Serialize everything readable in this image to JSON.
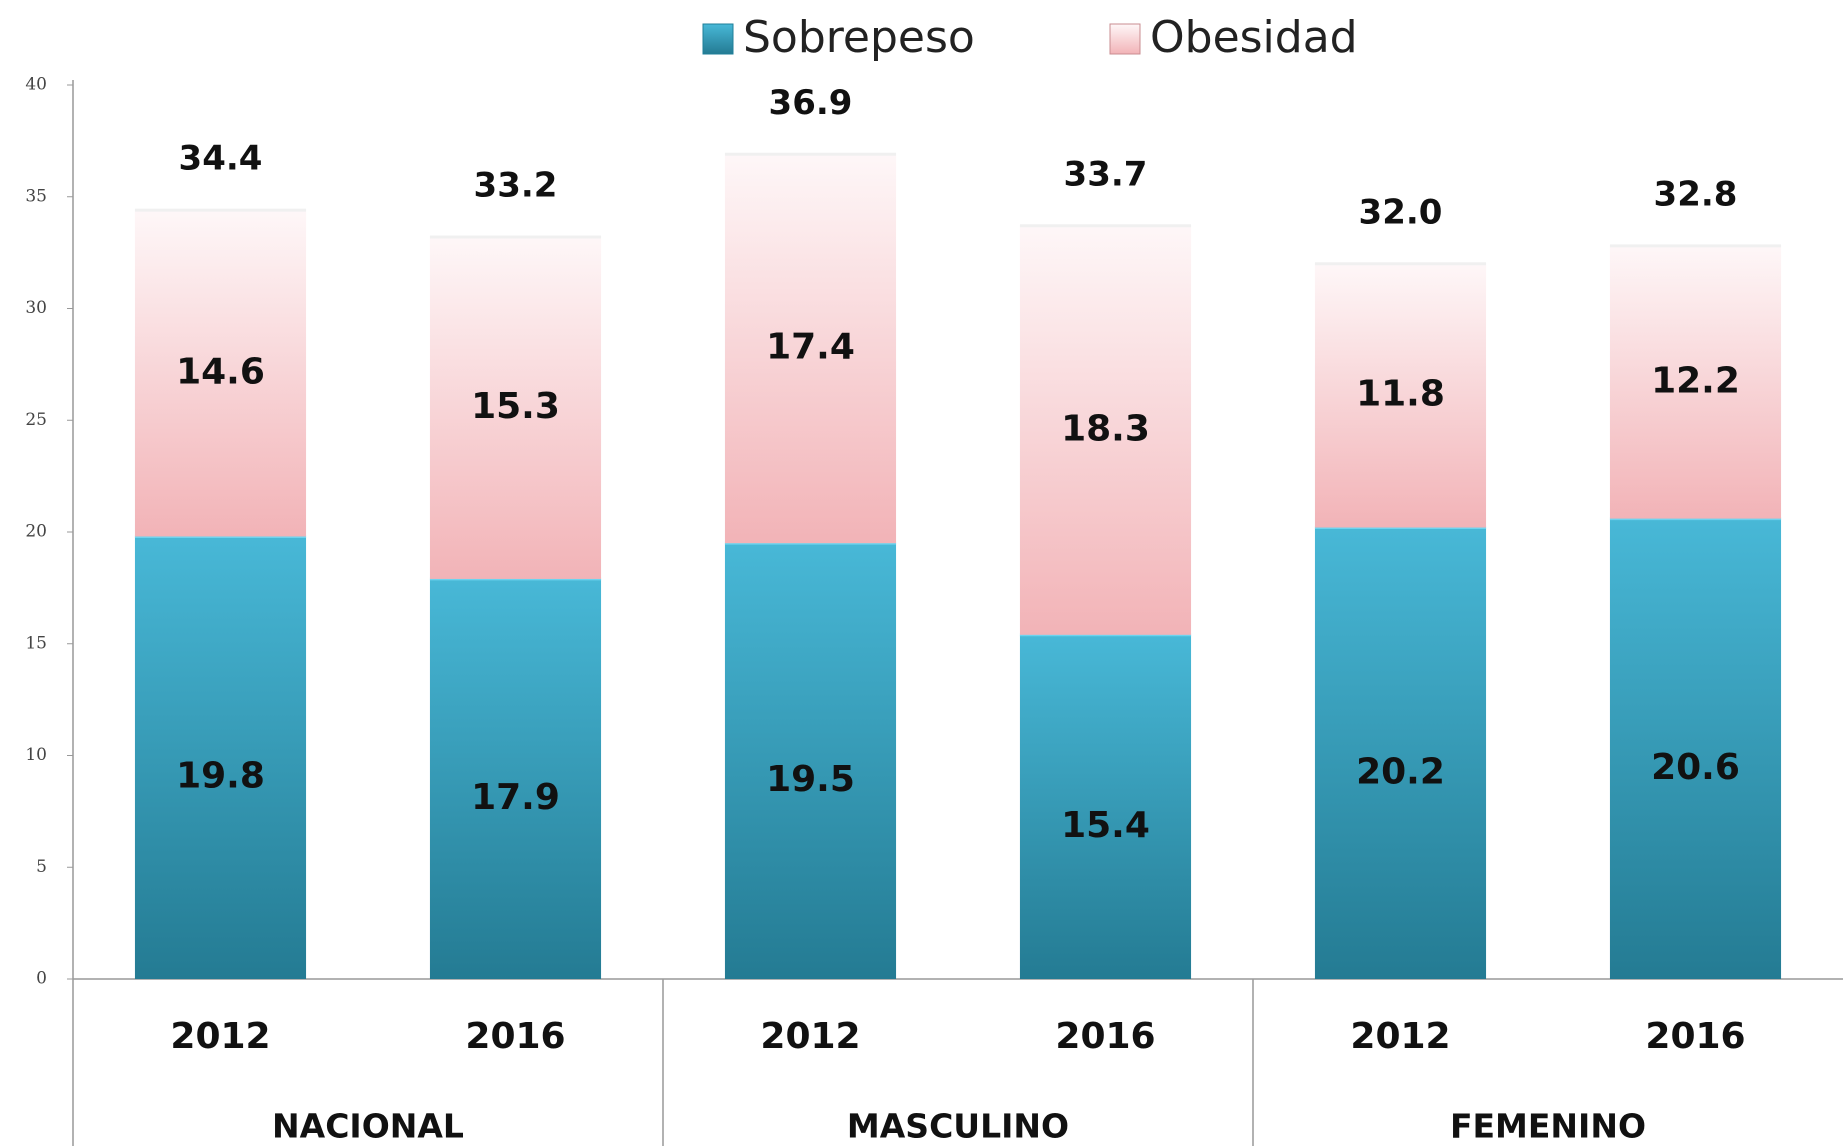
{
  "chart_data": {
    "type": "stacked-bar",
    "categories": [
      "2012",
      "2016",
      "2012",
      "2016",
      "2012",
      "2016"
    ],
    "groups": [
      "NACIONAL",
      "MASCULINO",
      "FEMENINO"
    ],
    "series": [
      {
        "name": "Sobrepeso",
        "color": "#34b0d2",
        "values": [
          19.8,
          17.9,
          19.5,
          15.4,
          20.2,
          20.6
        ]
      },
      {
        "name": "Obesidad",
        "color": "#f2b3b7",
        "values": [
          14.6,
          15.3,
          17.4,
          18.3,
          11.8,
          12.2
        ]
      }
    ],
    "totals": {
      "values": [
        34.4,
        33.2,
        36.9,
        33.7,
        32,
        32.8
      ],
      "value_labels": [
        "34.4",
        "33.2",
        "36.9",
        "33.7",
        "32.0",
        "32.8"
      ]
    },
    "ylim": [
      0,
      40
    ],
    "yticks": [
      0,
      5,
      10,
      15,
      20,
      25,
      30,
      35,
      40
    ],
    "grid": false,
    "legend": "top"
  }
}
